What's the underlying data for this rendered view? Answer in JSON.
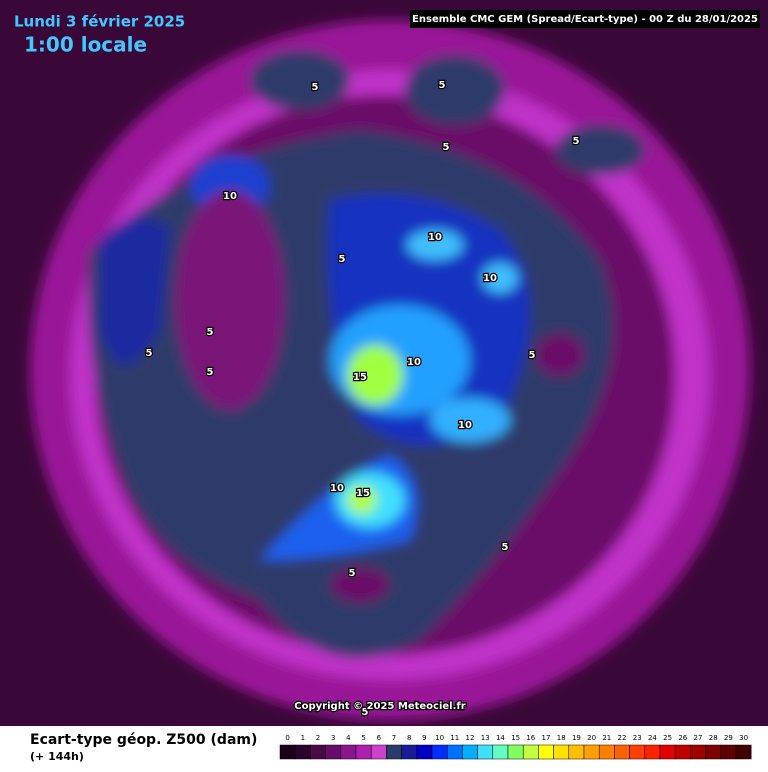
{
  "header": {
    "date": "Lundi 3 février 2025",
    "time": "1:00 locale",
    "model": "Ensemble CMC GEM  (Spread/Ecart-type) - 00 Z du 28/01/2025"
  },
  "map": {
    "contour_labels": [
      5,
      5,
      5,
      5,
      10,
      5,
      10,
      10,
      5,
      5,
      5,
      10,
      15,
      5,
      10,
      10,
      15,
      5,
      5,
      5
    ]
  },
  "copyright": "Copyright © 2025 Meteociel.fr",
  "legend": {
    "title": "Ecart-type géop. Z500 (dam)",
    "subtitle": "(+ 144h)",
    "ticks": [
      0,
      1,
      2,
      3,
      4,
      5,
      6,
      7,
      8,
      9,
      10,
      11,
      12,
      13,
      14,
      15,
      16,
      17,
      18,
      19,
      20,
      21,
      22,
      23,
      24,
      25,
      26,
      27,
      28,
      29,
      30
    ],
    "colors": [
      "#1a001a",
      "#2d002d",
      "#4a0848",
      "#6a0a6a",
      "#8c148c",
      "#b020b0",
      "#d040d0",
      "#2a3a6a",
      "#1a1a9a",
      "#0000c8",
      "#0030ff",
      "#0070ff",
      "#00b0ff",
      "#40e0ff",
      "#60ffc0",
      "#80ff60",
      "#c0ff40",
      "#ffff00",
      "#ffe000",
      "#ffc000",
      "#ffa000",
      "#ff8000",
      "#ff6000",
      "#ff4000",
      "#ff2000",
      "#e00000",
      "#c00000",
      "#a00000",
      "#800000",
      "#600000",
      "#400000"
    ]
  }
}
